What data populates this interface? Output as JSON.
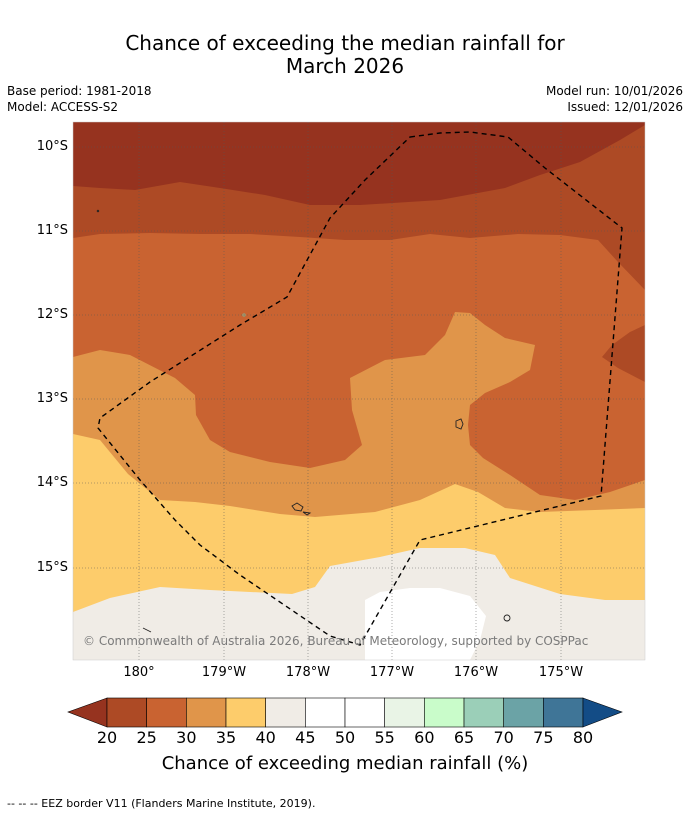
{
  "title_line1": "Chance of exceeding the median rainfall for",
  "title_line2": "March 2026",
  "meta": {
    "base_period": "Base period: 1981-2018",
    "model": "Model: ACCESS-S2",
    "model_run": "Model run: 10/01/2026",
    "issued": "Issued: 12/01/2026"
  },
  "map": {
    "lat_labels": [
      "10°S",
      "11°S",
      "12°S",
      "13°S",
      "14°S",
      "15°S"
    ],
    "lon_labels": [
      "180°",
      "179°W",
      "178°W",
      "177°W",
      "176°W",
      "175°W"
    ],
    "copyright": "© Commonwealth of Australia 2026, Bureau of Meteorology, supported by COSPPac"
  },
  "colorbar": {
    "labels": [
      "20",
      "25",
      "30",
      "35",
      "40",
      "45",
      "50",
      "55",
      "60",
      "65",
      "70",
      "75",
      "80"
    ],
    "colors": [
      "#ad4a25",
      "#c96331",
      "#e0954a",
      "#fdcc6b",
      "#f0ece6",
      "#ffffff",
      "#ffffff",
      "#e9f4e6",
      "#c9fcca",
      "#9bcfb8",
      "#6ba3a6",
      "#3f7597"
    ],
    "under_color": "#96331f",
    "over_color": "#134c86",
    "title": "Chance of exceeding median rainfall (%)"
  },
  "footer": "--  --  -- EEZ border V11 (Flanders Marine Institute, 2019)."
}
